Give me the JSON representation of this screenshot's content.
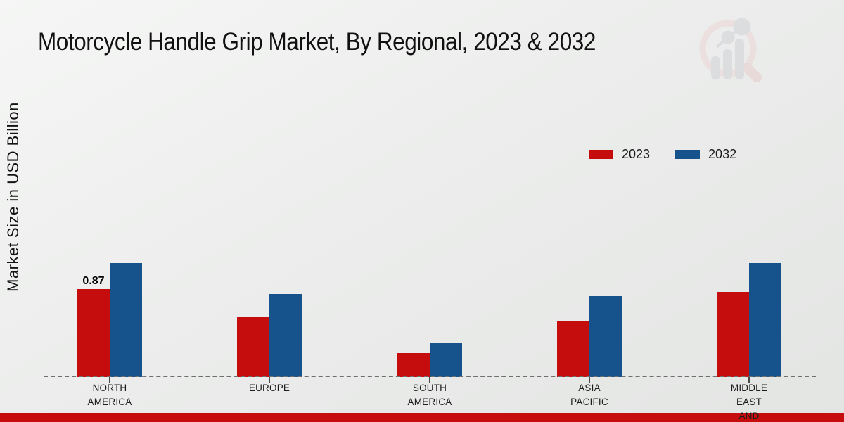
{
  "header": {
    "title": "Motorcycle Handle Grip Market, By Regional, 2023 & 2032"
  },
  "axes": {
    "y_axis_label": "Market Size in USD Billion"
  },
  "legend": {
    "items": [
      {
        "label": "2023",
        "color": "#c60d0e"
      },
      {
        "label": "2032",
        "color": "#16538c"
      }
    ]
  },
  "chart_data": {
    "type": "bar",
    "title": "Motorcycle Handle Grip Market, By Regional, 2023 & 2032",
    "xlabel": "",
    "ylabel": "Market Size in USD Billion",
    "categories": [
      "NORTH AMERICA",
      "EUROPE",
      "SOUTH AMERICA",
      "ASIA PACIFIC",
      "MIDDLE EAST AND"
    ],
    "category_display": [
      "NORTH\nAMERICA",
      "EUROPE",
      "SOUTH\nAMERICA",
      "ASIA\nPACIFIC",
      "MIDDLE\nEAST\nAND"
    ],
    "series": [
      {
        "name": "2023",
        "color": "#c60d0e",
        "values": [
          0.87,
          0.59,
          0.24,
          0.56,
          0.84
        ]
      },
      {
        "name": "2032",
        "color": "#16538c",
        "values": [
          1.13,
          0.82,
          0.34,
          0.8,
          1.13
        ]
      }
    ],
    "bar_labels": [
      {
        "category_index": 0,
        "series_index": 0,
        "text": "0.87"
      }
    ],
    "ylim": [
      0,
      1.3
    ],
    "grid": false,
    "baseline_style": "dashed",
    "legend_position": "top-right",
    "units": "USD Billion"
  },
  "decor": {
    "footer_strip_color": "#c60d0e",
    "watermark_icon": "market-research-magnifier-logo",
    "dashed_line_color": "#6f6f6f"
  }
}
